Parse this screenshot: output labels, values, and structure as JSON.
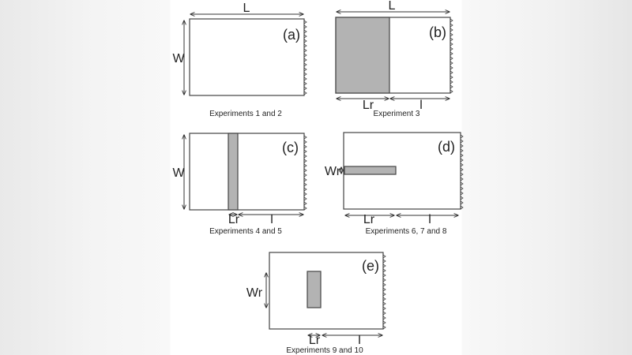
{
  "panels": {
    "a": {
      "label": "(a)",
      "L": "L",
      "W": "W",
      "caption": "Experiments 1 and 2"
    },
    "b": {
      "label": "(b)",
      "L": "L",
      "Lr": "Lr",
      "l": "l",
      "caption": "Experiment 3"
    },
    "c": {
      "label": "(c)",
      "W": "W",
      "Lr": "Lr",
      "l": "l",
      "caption": "Experiments 4 and 5"
    },
    "d": {
      "label": "(d)",
      "Wr": "Wr",
      "Lr": "Lr",
      "l": "l",
      "caption": "Experiments 6, 7 and 8"
    },
    "e": {
      "label": "(e)",
      "Wr": "Wr",
      "Lr": "Lr",
      "l": "l",
      "caption": "Experiments 9 and 10"
    }
  },
  "colors": {
    "region_fill": "#b3b3b3",
    "outline": "#444444"
  }
}
